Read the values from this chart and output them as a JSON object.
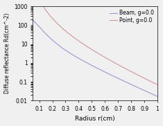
{
  "title": "",
  "xlabel": "Radius r(cm)",
  "ylabel": "Diffuse reflectance Rd(cm^-2)",
  "xlim": [
    0.05,
    1.0
  ],
  "ylim": [
    0.01,
    1000
  ],
  "xticks": [
    0.1,
    0.2,
    0.3,
    0.4,
    0.5,
    0.6,
    0.7,
    0.8,
    0.9,
    1.0
  ],
  "yticks": [
    0.01,
    0.1,
    1,
    10,
    100,
    1000
  ],
  "beam_color": "#9999cc",
  "point_color": "#cc9999",
  "legend_labels": [
    "Beam, g=0.0",
    "Point, g=0.0"
  ],
  "background_color": "#f0f0f0",
  "linewidth": 0.8,
  "mu_a": 1.0,
  "mu_s_prime": 10.0,
  "n": 1.4
}
